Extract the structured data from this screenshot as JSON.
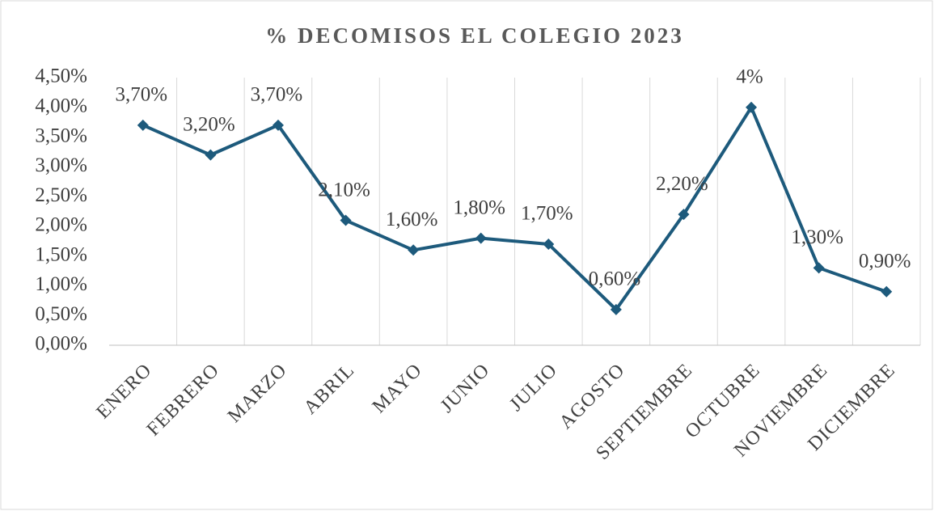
{
  "chart_data": {
    "type": "line",
    "title": "% DECOMISOS EL COLEGIO 2023",
    "categories": [
      "ENERO",
      "FEBRERO",
      "MARZO",
      "ABRIL",
      "MAYO",
      "JUNIO",
      "JULIO",
      "AGOSTO",
      "SEPTIEMBRE",
      "OCTUBRE",
      "NOVIEMBRE",
      "DICIEMBRE"
    ],
    "series": [
      {
        "name": "% DECOMISOS",
        "color": "#1d5a7c",
        "values": [
          3.7,
          3.2,
          3.7,
          2.1,
          1.6,
          1.8,
          1.7,
          0.6,
          2.2,
          4,
          1.3,
          0.9
        ],
        "value_labels": [
          "3,70%",
          "3,20%",
          "3,70%",
          "2,10%",
          "1,60%",
          "1,80%",
          "1,70%",
          "0,60%",
          "2,20%",
          "4%",
          "1,30%",
          "0,90%"
        ]
      }
    ],
    "ylim": [
      0,
      4.5
    ],
    "yticks": [
      {
        "value": 0,
        "label": "0,00%"
      },
      {
        "value": 0.5,
        "label": "0,50%"
      },
      {
        "value": 1,
        "label": "1,00%"
      },
      {
        "value": 1.5,
        "label": "1,50%"
      },
      {
        "value": 2,
        "label": "2,00%"
      },
      {
        "value": 2.5,
        "label": "2,50%"
      },
      {
        "value": 3,
        "label": "3,00%"
      },
      {
        "value": 3.5,
        "label": "3,50%"
      },
      {
        "value": 4,
        "label": "4,00%"
      },
      {
        "value": 4.5,
        "label": "4,50%"
      }
    ],
    "grid": true
  }
}
